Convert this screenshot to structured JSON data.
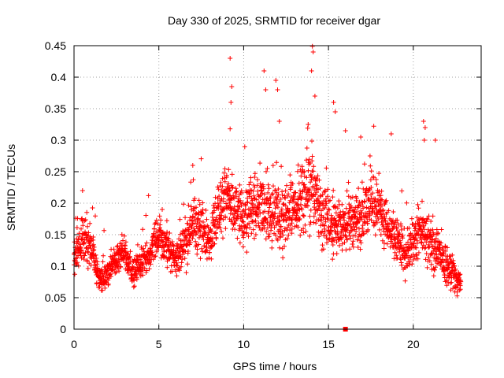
{
  "chart_data": {
    "type": "scatter",
    "title": "Day 330 of 2025, SRMTID for receiver dgar",
    "xlabel": "GPS time / hours",
    "ylabel": "SRMTID / TECUs",
    "xlim": [
      0,
      24
    ],
    "ylim": [
      0,
      0.45
    ],
    "x_ticks": [
      0,
      5,
      10,
      15,
      20
    ],
    "x_tick_labels": [
      "0",
      "5",
      "10",
      "15",
      "20"
    ],
    "y_ticks": [
      0,
      0.05,
      0.1,
      0.15,
      0.2,
      0.25,
      0.3,
      0.35,
      0.4,
      0.45
    ],
    "y_tick_labels": [
      "0",
      "0.05",
      "0.1",
      "0.15",
      "0.2",
      "0.25",
      "0.3",
      "0.35",
      "0.4",
      "0.45"
    ],
    "grid": true,
    "marker": "+",
    "marker_color": "#ff0000",
    "series": [
      {
        "name": "SRMTID",
        "approximate": true,
        "profile": {
          "x": [
            0,
            0.5,
            1,
            1.5,
            2,
            2.5,
            3,
            3.5,
            4,
            4.5,
            5,
            5.5,
            6,
            6.5,
            7,
            7.5,
            8,
            8.5,
            9,
            9.5,
            10,
            10.5,
            11,
            11.5,
            12,
            12.5,
            13,
            13.5,
            14,
            14.5,
            15,
            15.5,
            16,
            16.5,
            17,
            17.5,
            18,
            18.5,
            19,
            19.5,
            20,
            20.5,
            21,
            21.5,
            22,
            22.5,
            22.8
          ],
          "y_median": [
            0.11,
            0.15,
            0.13,
            0.08,
            0.09,
            0.11,
            0.12,
            0.09,
            0.11,
            0.12,
            0.15,
            0.13,
            0.11,
            0.13,
            0.17,
            0.16,
            0.14,
            0.19,
            0.21,
            0.19,
            0.17,
            0.19,
            0.2,
            0.19,
            0.17,
            0.18,
            0.19,
            0.21,
            0.23,
            0.19,
            0.17,
            0.16,
            0.17,
            0.17,
            0.18,
            0.2,
            0.19,
            0.16,
            0.14,
            0.12,
            0.14,
            0.16,
            0.14,
            0.12,
            0.1,
            0.08,
            0.07
          ],
          "y_spread": [
            0.03,
            0.035,
            0.03,
            0.02,
            0.025,
            0.025,
            0.025,
            0.025,
            0.025,
            0.025,
            0.03,
            0.03,
            0.025,
            0.035,
            0.04,
            0.04,
            0.035,
            0.045,
            0.05,
            0.05,
            0.045,
            0.05,
            0.05,
            0.05,
            0.045,
            0.045,
            0.05,
            0.055,
            0.06,
            0.05,
            0.05,
            0.045,
            0.045,
            0.045,
            0.045,
            0.045,
            0.045,
            0.04,
            0.035,
            0.035,
            0.04,
            0.045,
            0.04,
            0.035,
            0.03,
            0.025,
            0.02
          ]
        },
        "n_points": 2400,
        "spikes": [
          {
            "x": 9.2,
            "y": 0.43
          },
          {
            "x": 9.3,
            "y": 0.385
          },
          {
            "x": 9.25,
            "y": 0.36
          },
          {
            "x": 9.2,
            "y": 0.318
          },
          {
            "x": 11.2,
            "y": 0.41
          },
          {
            "x": 11.3,
            "y": 0.38
          },
          {
            "x": 11.9,
            "y": 0.395
          },
          {
            "x": 12.0,
            "y": 0.38
          },
          {
            "x": 12.1,
            "y": 0.33
          },
          {
            "x": 13.8,
            "y": 0.325
          },
          {
            "x": 14.05,
            "y": 0.449
          },
          {
            "x": 14.1,
            "y": 0.44
          },
          {
            "x": 14.0,
            "y": 0.41
          },
          {
            "x": 14.2,
            "y": 0.37
          },
          {
            "x": 15.3,
            "y": 0.36
          },
          {
            "x": 15.4,
            "y": 0.345
          },
          {
            "x": 16.0,
            "y": 0.315
          },
          {
            "x": 16.9,
            "y": 0.305
          },
          {
            "x": 18.7,
            "y": 0.31
          },
          {
            "x": 20.6,
            "y": 0.33
          },
          {
            "x": 20.7,
            "y": 0.32
          },
          {
            "x": 20.65,
            "y": 0.3
          },
          {
            "x": 21.3,
            "y": 0.3
          },
          {
            "x": 0.5,
            "y": 0.22
          },
          {
            "x": 5.2,
            "y": 0.19
          },
          {
            "x": 7.0,
            "y": 0.26
          }
        ],
        "special_points": [
          {
            "x": 16.0,
            "y": 0.0,
            "marker": "square"
          }
        ]
      }
    ]
  }
}
